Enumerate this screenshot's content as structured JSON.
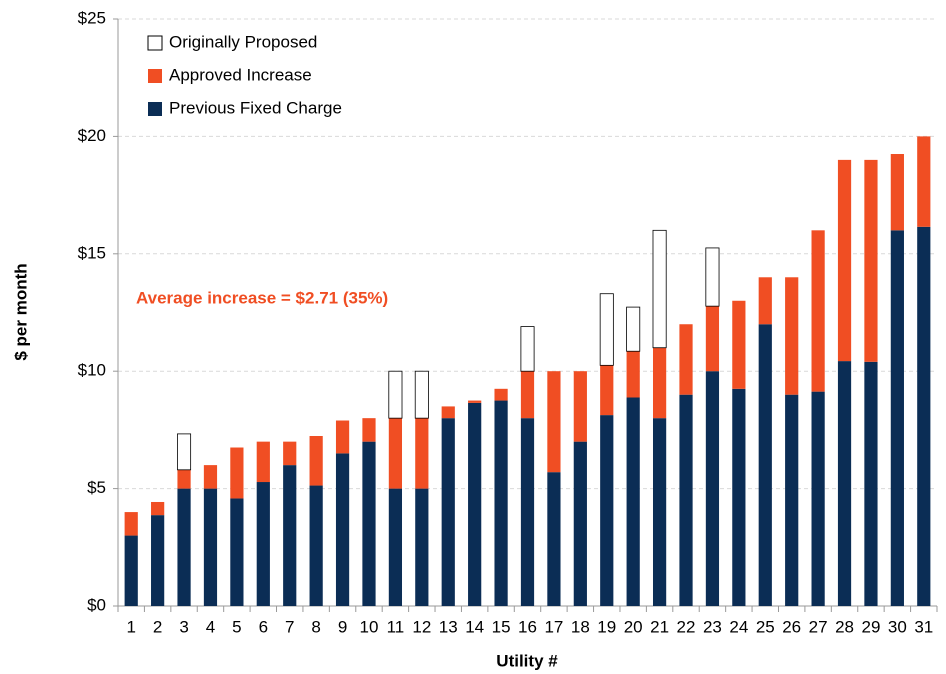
{
  "chart_data": {
    "type": "stacked_bar",
    "annotation": "Average increase = $2.71 (35%)",
    "annotation_color": "#f04e23",
    "y_label": "$ per month",
    "x_label": "Utility #",
    "categories": [
      "1",
      "2",
      "3",
      "4",
      "5",
      "6",
      "7",
      "8",
      "9",
      "10",
      "11",
      "12",
      "13",
      "14",
      "15",
      "16",
      "17",
      "18",
      "19",
      "20",
      "21",
      "22",
      "23",
      "24",
      "25",
      "26",
      "27",
      "28",
      "29",
      "30",
      "31"
    ],
    "series": [
      {
        "name": "Previous Fixed Charge",
        "color": "#0b2d55",
        "values": [
          3.0,
          3.87,
          5.0,
          5.0,
          4.58,
          5.28,
          6.0,
          5.13,
          6.5,
          7.0,
          5.0,
          5.0,
          8.0,
          8.65,
          8.75,
          8.0,
          5.7,
          7.0,
          8.13,
          8.88,
          8.0,
          9.0,
          10.0,
          9.25,
          12.0,
          9.0,
          9.13,
          10.43,
          10.4,
          16.0,
          16.15
        ]
      },
      {
        "name": "Approved Increase",
        "color": "#f04e23",
        "values": [
          1.0,
          0.56,
          0.8,
          1.0,
          2.17,
          1.72,
          1.0,
          2.11,
          1.4,
          1.0,
          3.0,
          3.0,
          0.5,
          0.1,
          0.5,
          2.0,
          4.3,
          3.0,
          2.12,
          1.97,
          3.0,
          3.0,
          2.77,
          3.75,
          2.0,
          5.0,
          6.87,
          8.57,
          8.6,
          3.25,
          3.85
        ]
      },
      {
        "name": "Originally Proposed",
        "color": "#ffffff",
        "values": [
          null,
          null,
          1.53,
          null,
          null,
          null,
          null,
          null,
          null,
          null,
          2.0,
          2.0,
          null,
          null,
          null,
          1.9,
          null,
          null,
          3.05,
          1.88,
          5.0,
          null,
          2.48,
          null,
          null,
          null,
          null,
          null,
          null,
          null,
          null
        ]
      }
    ],
    "ylim": [
      0,
      25
    ],
    "yticks": [
      {
        "value": 0,
        "label": "$0"
      },
      {
        "value": 5,
        "label": "$5"
      },
      {
        "value": 10,
        "label": "$10"
      },
      {
        "value": 15,
        "label": "$15"
      },
      {
        "value": 20,
        "label": "$20"
      },
      {
        "value": 25,
        "label": "$25"
      }
    ],
    "grid": true,
    "legend": "upper left"
  }
}
